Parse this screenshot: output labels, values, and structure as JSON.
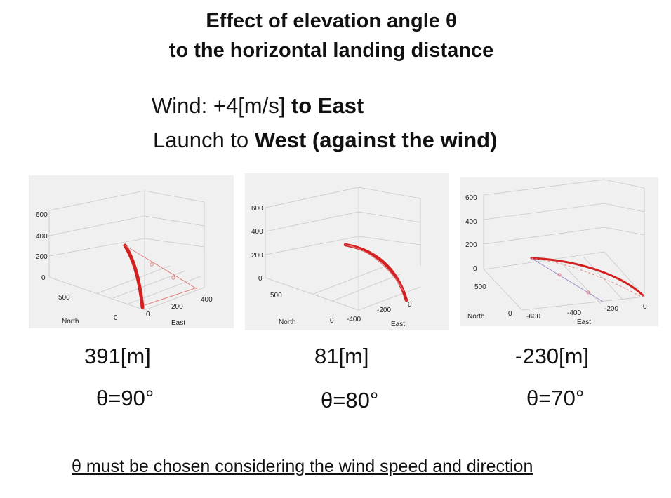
{
  "title": {
    "line1": "Effect of elevation angle θ",
    "line2": "to the horizontal landing distance"
  },
  "conditions": {
    "wind_prefix": "Wind: +4[m/s] ",
    "wind_bold": "to East",
    "launch_prefix": "Launch to ",
    "launch_bold": "West (against the wind)"
  },
  "panels": [
    {
      "z_ticks": [
        "600",
        "400",
        "200",
        "0"
      ],
      "north_ticks": [
        "500",
        "0"
      ],
      "east_ticks": [
        "0",
        "200",
        "400"
      ],
      "north_label": "North",
      "east_label": "East",
      "distance": "391[m]",
      "angle": "θ=90°"
    },
    {
      "z_ticks": [
        "600",
        "400",
        "200",
        "0"
      ],
      "north_ticks": [
        "500",
        "0"
      ],
      "east_ticks": [
        "-400",
        "-200",
        "0"
      ],
      "north_label": "North",
      "east_label": "East",
      "distance": "81[m]",
      "angle": "θ=80°"
    },
    {
      "z_ticks": [
        "600",
        "400",
        "200",
        "0"
      ],
      "north_ticks": [
        "500",
        "0"
      ],
      "east_ticks": [
        "-600",
        "-400",
        "-200",
        "0"
      ],
      "north_label": "North",
      "east_label": "East",
      "distance": "-230[m]",
      "angle": "θ=70°"
    }
  ],
  "footer": "θ must be chosen considering the wind speed and direction",
  "colors": {
    "trajectory": "#d42020",
    "ground_track_1": "#e07f7f",
    "ground_track_3": "#a78bc9",
    "panel_bg": "#f0f0f0"
  }
}
